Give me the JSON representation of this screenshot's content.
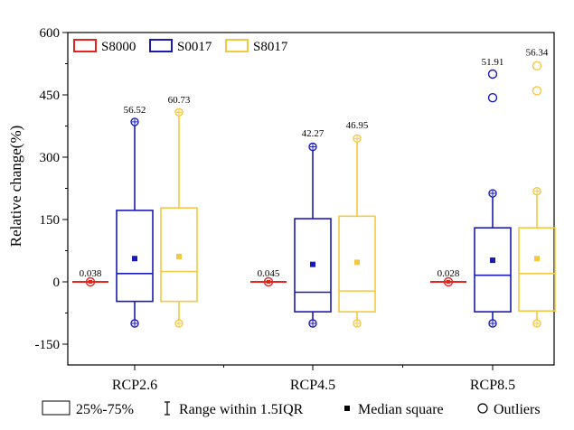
{
  "chart_data": {
    "type": "box",
    "ylabel": "Relative change(%)",
    "ylim": [
      -200,
      600
    ],
    "yticks": [
      -150,
      0,
      150,
      300,
      450,
      600
    ],
    "categories": [
      "RCP2.6",
      "RCP4.5",
      "RCP8.5"
    ],
    "series": [
      {
        "name": "S8000",
        "color": "#e8221c",
        "boxes": [
          {
            "category": "RCP2.6",
            "q1": -1,
            "median": 0,
            "q3": 1,
            "whisker_low": -2,
            "whisker_high": 2,
            "median_square": 0,
            "outliers": [],
            "label": "0.038",
            "label_y": 13
          },
          {
            "category": "RCP4.5",
            "q1": -1,
            "median": 0,
            "q3": 1,
            "whisker_low": -2,
            "whisker_high": 2,
            "median_square": 0,
            "outliers": [],
            "label": "0.045",
            "label_y": 13
          },
          {
            "category": "RCP8.5",
            "q1": -1,
            "median": 0,
            "q3": 1,
            "whisker_low": -2,
            "whisker_high": 2,
            "median_square": 0,
            "outliers": [],
            "label": "0.028",
            "label_y": 13
          }
        ]
      },
      {
        "name": "S0017",
        "color": "#1a1ab4",
        "boxes": [
          {
            "category": "RCP2.6",
            "q1": -47,
            "median": 20,
            "q3": 172,
            "whisker_low": -100,
            "whisker_high": 385,
            "median_square": 56,
            "outliers": [],
            "label": "56.52",
            "label_y": 406
          },
          {
            "category": "RCP4.5",
            "q1": -72,
            "median": -25,
            "q3": 152,
            "whisker_low": -100,
            "whisker_high": 325,
            "median_square": 42,
            "outliers": [],
            "label": "42.27",
            "label_y": 350
          },
          {
            "category": "RCP8.5",
            "q1": -72,
            "median": 16,
            "q3": 130,
            "whisker_low": -100,
            "whisker_high": 213,
            "median_square": 52,
            "outliers": [
              443,
              500
            ],
            "label": "51.91",
            "label_y": 522
          }
        ]
      },
      {
        "name": "S8017",
        "color": "#f5c842",
        "boxes": [
          {
            "category": "RCP2.6",
            "q1": -47,
            "median": 25,
            "q3": 178,
            "whisker_low": -100,
            "whisker_high": 408,
            "median_square": 61,
            "outliers": [],
            "label": "60.73",
            "label_y": 430
          },
          {
            "category": "RCP4.5",
            "q1": -72,
            "median": -22,
            "q3": 158,
            "whisker_low": -100,
            "whisker_high": 345,
            "median_square": 47,
            "outliers": [],
            "label": "46.95",
            "label_y": 370
          },
          {
            "category": "RCP8.5",
            "q1": -70,
            "median": 20,
            "q3": 130,
            "whisker_low": -100,
            "whisker_high": 218,
            "median_square": 56,
            "outliers": [
              460,
              520
            ],
            "label": "56.34",
            "label_y": 545
          }
        ]
      }
    ],
    "footer_legend": {
      "box": "25%-75%",
      "range": "Range within 1.5IQR",
      "median": "Median square",
      "outliers": "Outliers"
    }
  }
}
